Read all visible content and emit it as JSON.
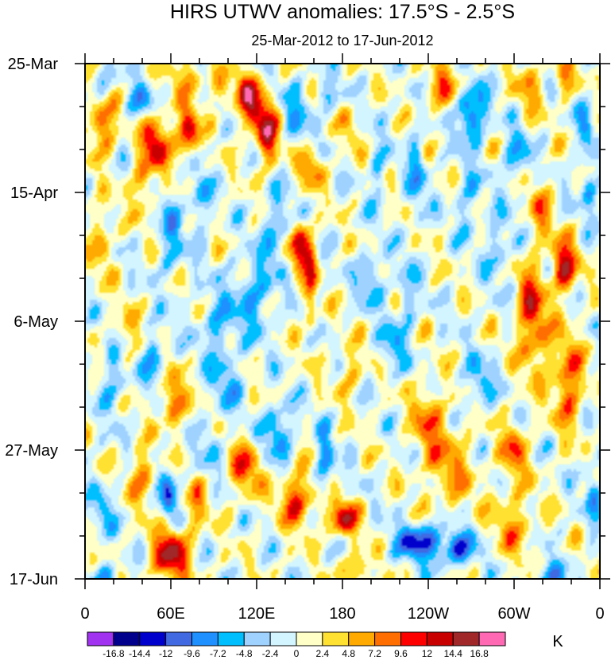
{
  "chart_data": {
    "type": "heatmap",
    "title": "HIRS UTWV anomalies: 17.5°S - 2.5°S",
    "subtitle": "25-Mar-2012 to 17-Jun-2012",
    "x_ticks": [
      {
        "label": "0",
        "lon": 0
      },
      {
        "label": "60E",
        "lon": 60
      },
      {
        "label": "120E",
        "lon": 120
      },
      {
        "label": "180",
        "lon": 180
      },
      {
        "label": "120W",
        "lon": 240
      },
      {
        "label": "60W",
        "lon": 300
      },
      {
        "label": "0",
        "lon": 360
      }
    ],
    "x_range": [
      0,
      360
    ],
    "y_ticks": [
      {
        "label": "25-Mar",
        "day": 0
      },
      {
        "label": "15-Apr",
        "day": 21
      },
      {
        "label": "6-May",
        "day": 42
      },
      {
        "label": "27-May",
        "day": 63
      },
      {
        "label": "17-Jun",
        "day": 84
      }
    ],
    "y_range": [
      0,
      84
    ],
    "colorbar": {
      "unit": "K",
      "labels": [
        "-16.8",
        "-14.4",
        "-12",
        "-9.6",
        "-7.2",
        "-4.8",
        "-2.4",
        "0",
        "2.4",
        "4.8",
        "7.2",
        "9.6",
        "12",
        "14.4",
        "16.8"
      ],
      "levels": [
        -16.8,
        -14.4,
        -12,
        -9.6,
        -7.2,
        -4.8,
        -2.4,
        0,
        2.4,
        4.8,
        7.2,
        9.6,
        12,
        14.4,
        16.8
      ],
      "colors": [
        "#a032f0",
        "#00008c",
        "#0000cd",
        "#4169e1",
        "#1e90ff",
        "#00bfff",
        "#a0d2ff",
        "#d2f5ff",
        "#ffffc8",
        "#ffe132",
        "#ffaa00",
        "#ff6e00",
        "#ff0000",
        "#c80000",
        "#a02828",
        "#ff69b4"
      ]
    },
    "features": [
      {
        "lon": 12,
        "day": 10,
        "sx": 6,
        "sy": 3,
        "v": 11
      },
      {
        "lon": 50,
        "day": 13,
        "sx": 7,
        "sy": 3,
        "v": 13
      },
      {
        "lon": 72,
        "day": 11,
        "sx": 5,
        "sy": 3,
        "v": 13
      },
      {
        "lon": 72,
        "day": 2,
        "sx": 8,
        "sy": 2,
        "v": 6
      },
      {
        "lon": 38,
        "day": 6,
        "sx": 6,
        "sy": 2,
        "v": -7
      },
      {
        "lon": 12,
        "day": 3,
        "sx": 4,
        "sy": 2,
        "v": -6
      },
      {
        "lon": 95,
        "day": 4,
        "sx": 6,
        "sy": 2,
        "v": 6
      },
      {
        "lon": 118,
        "day": 7,
        "sx": 7,
        "sy": 3,
        "v": 12
      },
      {
        "lon": 128,
        "day": 12,
        "sx": 5,
        "sy": 3,
        "v": 13
      },
      {
        "lon": 112,
        "day": 4,
        "sx": 5,
        "sy": 2,
        "v": 6
      },
      {
        "lon": 148,
        "day": 8,
        "sx": 6,
        "sy": 3,
        "v": -6
      },
      {
        "lon": 170,
        "day": 5,
        "sx": 6,
        "sy": 2,
        "v": -5
      },
      {
        "lon": 158,
        "day": 17,
        "sx": 6,
        "sy": 2,
        "v": 8
      },
      {
        "lon": 150,
        "day": 30,
        "sx": 5,
        "sy": 3,
        "v": 14
      },
      {
        "lon": 158,
        "day": 36,
        "sx": 3,
        "sy": 5,
        "v": 8
      },
      {
        "lon": 135,
        "day": 27,
        "sx": 8,
        "sy": 4,
        "v": -6
      },
      {
        "lon": 118,
        "day": 38,
        "sx": 10,
        "sy": 4,
        "v": -7
      },
      {
        "lon": 92,
        "day": 43,
        "sx": 8,
        "sy": 4,
        "v": -6
      },
      {
        "lon": 60,
        "day": 28,
        "sx": 6,
        "sy": 5,
        "v": -6
      },
      {
        "lon": 40,
        "day": 20,
        "sx": 5,
        "sy": 3,
        "v": 7
      },
      {
        "lon": 12,
        "day": 29,
        "sx": 5,
        "sy": 4,
        "v": 6
      },
      {
        "lon": 28,
        "day": 44,
        "sx": 6,
        "sy": 3,
        "v": 5
      },
      {
        "lon": 20,
        "day": 51,
        "sx": 6,
        "sy": 4,
        "v": -6
      },
      {
        "lon": 62,
        "day": 55,
        "sx": 5,
        "sy": 3,
        "v": 11
      },
      {
        "lon": 100,
        "day": 52,
        "sx": 7,
        "sy": 3,
        "v": -6
      },
      {
        "lon": 135,
        "day": 60,
        "sx": 7,
        "sy": 3,
        "v": -9
      },
      {
        "lon": 168,
        "day": 65,
        "sx": 4,
        "sy": 4,
        "v": -8
      },
      {
        "lon": 112,
        "day": 66,
        "sx": 8,
        "sy": 3,
        "v": 9
      },
      {
        "lon": 148,
        "day": 71,
        "sx": 8,
        "sy": 3,
        "v": 11
      },
      {
        "lon": 180,
        "day": 74,
        "sx": 8,
        "sy": 2,
        "v": 12
      },
      {
        "lon": 40,
        "day": 67,
        "sx": 6,
        "sy": 3,
        "v": 8
      },
      {
        "lon": 58,
        "day": 70,
        "sx": 4,
        "sy": 3,
        "v": -11
      },
      {
        "lon": 60,
        "day": 80,
        "sx": 9,
        "sy": 3,
        "v": 14
      },
      {
        "lon": 78,
        "day": 72,
        "sx": 5,
        "sy": 3,
        "v": 6
      },
      {
        "lon": 12,
        "day": 73,
        "sx": 6,
        "sy": 3,
        "v": -5
      },
      {
        "lon": 15,
        "day": 84,
        "sx": 6,
        "sy": 2,
        "v": -6
      },
      {
        "lon": 235,
        "day": 78,
        "sx": 12,
        "sy": 2,
        "v": -13
      },
      {
        "lon": 262,
        "day": 79,
        "sx": 8,
        "sy": 2,
        "v": -10
      },
      {
        "lon": 190,
        "day": 83,
        "sx": 6,
        "sy": 2,
        "v": 8
      },
      {
        "lon": 325,
        "day": 84,
        "sx": 8,
        "sy": 2,
        "v": -7
      },
      {
        "lon": 300,
        "day": 75,
        "sx": 10,
        "sy": 4,
        "v": 6
      },
      {
        "lon": 255,
        "day": 66,
        "sx": 12,
        "sy": 5,
        "v": 6
      },
      {
        "lon": 240,
        "day": 58,
        "sx": 8,
        "sy": 4,
        "v": 7
      },
      {
        "lon": 300,
        "day": 63,
        "sx": 6,
        "sy": 3,
        "v": 9
      },
      {
        "lon": 275,
        "day": 52,
        "sx": 7,
        "sy": 3,
        "v": -6
      },
      {
        "lon": 315,
        "day": 44,
        "sx": 8,
        "sy": 5,
        "v": 8
      },
      {
        "lon": 338,
        "day": 52,
        "sx": 7,
        "sy": 5,
        "v": 10
      },
      {
        "lon": 335,
        "day": 33,
        "sx": 6,
        "sy": 3,
        "v": 14
      },
      {
        "lon": 310,
        "day": 38,
        "sx": 6,
        "sy": 4,
        "v": 7
      },
      {
        "lon": 318,
        "day": 24,
        "sx": 6,
        "sy": 4,
        "v": 6
      },
      {
        "lon": 290,
        "day": 30,
        "sx": 7,
        "sy": 4,
        "v": -5
      },
      {
        "lon": 270,
        "day": 8,
        "sx": 7,
        "sy": 3,
        "v": -12
      },
      {
        "lon": 302,
        "day": 15,
        "sx": 6,
        "sy": 3,
        "v": -7
      },
      {
        "lon": 232,
        "day": 18,
        "sx": 4,
        "sy": 5,
        "v": -7
      },
      {
        "lon": 268,
        "day": 22,
        "sx": 6,
        "sy": 4,
        "v": -5
      },
      {
        "lon": 250,
        "day": 4,
        "sx": 8,
        "sy": 3,
        "v": 7
      },
      {
        "lon": 310,
        "day": 4,
        "sx": 6,
        "sy": 3,
        "v": 6
      },
      {
        "lon": 335,
        "day": 2,
        "sx": 4,
        "sy": 2,
        "v": 10
      },
      {
        "lon": 350,
        "day": 10,
        "sx": 4,
        "sy": 3,
        "v": -6
      },
      {
        "lon": 352,
        "day": 20,
        "sx": 4,
        "sy": 3,
        "v": -7
      },
      {
        "lon": 200,
        "day": 35,
        "sx": 6,
        "sy": 3,
        "v": -7
      },
      {
        "lon": 215,
        "day": 46,
        "sx": 6,
        "sy": 3,
        "v": -6
      },
      {
        "lon": 185,
        "day": 50,
        "sx": 6,
        "sy": 3,
        "v": 5
      },
      {
        "lon": 205,
        "day": 18,
        "sx": 4,
        "sy": 4,
        "v": -5
      },
      {
        "lon": 225,
        "day": 38,
        "sx": 4,
        "sy": 4,
        "v": -6
      },
      {
        "lon": 185,
        "day": 10,
        "sx": 5,
        "sy": 3,
        "v": 4
      },
      {
        "lon": 80,
        "day": 22,
        "sx": 5,
        "sy": 4,
        "v": -6
      },
      {
        "lon": 48,
        "day": 48,
        "sx": 5,
        "sy": 3,
        "v": -7
      },
      {
        "lon": 88,
        "day": 62,
        "sx": 5,
        "sy": 3,
        "v": -5
      },
      {
        "lon": 355,
        "day": 70,
        "sx": 4,
        "sy": 4,
        "v": -6
      }
    ]
  }
}
